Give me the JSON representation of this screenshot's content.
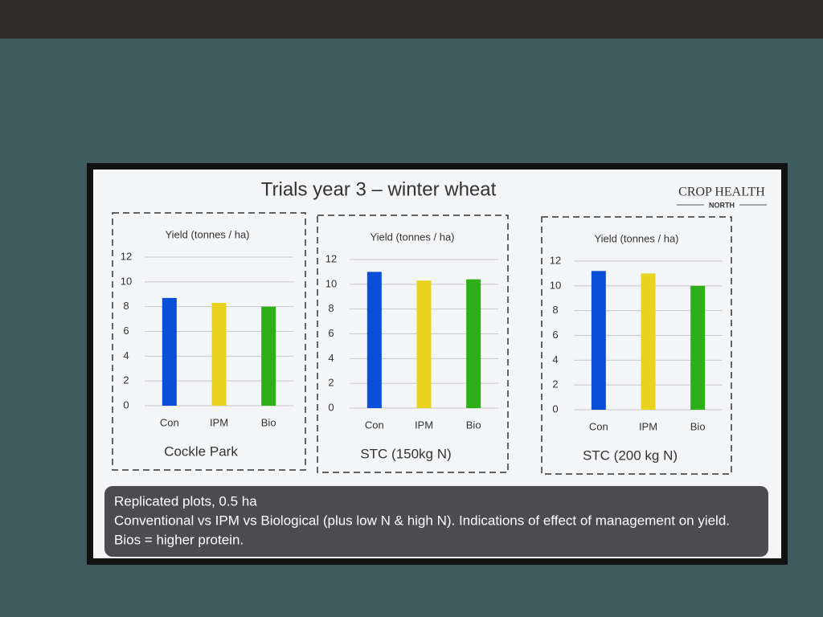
{
  "slide": {
    "title": "Trials year 3 – winter wheat",
    "logo": [
      "CROP HEALTH",
      "NORTH"
    ],
    "notes": [
      "Replicated plots, 0.5 ha",
      "Conventional vs IPM vs Biological (plus low N & high N). Indications of effect of management on yield.",
      "Bios = higher protein."
    ]
  },
  "chart_data": [
    {
      "type": "bar",
      "title": "Cockle Park",
      "y_label": "Yield (tonnes / ha)",
      "categories": [
        "Con",
        "IPM",
        "Bio"
      ],
      "values": [
        8.7,
        8.3,
        8.0
      ],
      "colors": [
        "#0b4fd8",
        "#e9d320",
        "#2eae18"
      ],
      "ylim": [
        0,
        12
      ],
      "yticks": [
        0,
        2,
        4,
        6,
        8,
        10,
        12
      ],
      "grid": true
    },
    {
      "type": "bar",
      "title": "STC (150kg N)",
      "y_label": "Yield (tonnes / ha)",
      "categories": [
        "Con",
        "IPM",
        "Bio"
      ],
      "values": [
        11.0,
        10.3,
        10.4
      ],
      "colors": [
        "#0b4fd8",
        "#e9d320",
        "#2eae18"
      ],
      "ylim": [
        0,
        12
      ],
      "yticks": [
        0,
        2,
        4,
        6,
        8,
        10,
        12
      ],
      "grid": true
    },
    {
      "type": "bar",
      "title": "STC (200 kg N)",
      "y_label": "Yield (tonnes / ha)",
      "categories": [
        "Con",
        "IPM",
        "Bio"
      ],
      "values": [
        11.2,
        11.0,
        10.0
      ],
      "colors": [
        "#0b4fd8",
        "#e9d320",
        "#2eae18"
      ],
      "ylim": [
        0,
        12
      ],
      "yticks": [
        0,
        2,
        4,
        6,
        8,
        10,
        12
      ],
      "grid": true
    }
  ]
}
